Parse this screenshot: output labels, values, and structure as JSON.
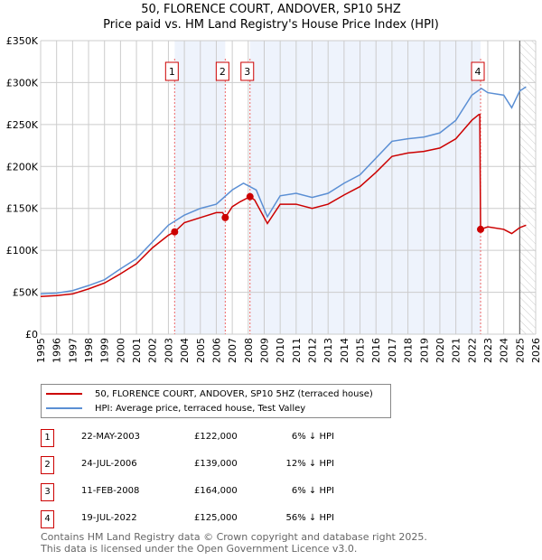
{
  "chart_data": {
    "type": "line",
    "title": "50, FLORENCE COURT, ANDOVER, SP10 5HZ",
    "subtitle": "Price paid vs. HM Land Registry's House Price Index (HPI)",
    "xlim": [
      1995,
      2026
    ],
    "ylim": [
      0,
      350000
    ],
    "x_ticks": [
      "1995",
      "1996",
      "1997",
      "1998",
      "1999",
      "2000",
      "2001",
      "2002",
      "2003",
      "2004",
      "2005",
      "2006",
      "2007",
      "2008",
      "2009",
      "2010",
      "2011",
      "2012",
      "2013",
      "2014",
      "2015",
      "2016",
      "2017",
      "2018",
      "2019",
      "2020",
      "2021",
      "2022",
      "2023",
      "2024",
      "2025",
      "2026"
    ],
    "y_ticks": [
      {
        "v": 0,
        "label": "£0"
      },
      {
        "v": 50000,
        "label": "£50K"
      },
      {
        "v": 100000,
        "label": "£100K"
      },
      {
        "v": 150000,
        "label": "£150K"
      },
      {
        "v": 200000,
        "label": "£200K"
      },
      {
        "v": 250000,
        "label": "£250K"
      },
      {
        "v": 300000,
        "label": "£300K"
      },
      {
        "v": 350000,
        "label": "£350K"
      }
    ],
    "grid": true,
    "series": [
      {
        "name": "50, FLORENCE COURT, ANDOVER, SP10 5HZ (terraced house)",
        "color": "#cc0000",
        "x": [
          1995,
          1996,
          1997,
          1998,
          1999,
          2000,
          2001,
          2002,
          2003,
          2003.39,
          2004,
          2005,
          2006,
          2006.4,
          2006.56,
          2007,
          2007.5,
          2008.11,
          2008.4,
          2009.2,
          2010,
          2011,
          2012,
          2013,
          2014,
          2015,
          2016,
          2017,
          2018,
          2019,
          2020,
          2021,
          2022,
          2022.45,
          2022.5,
          2022.55,
          2023,
          2024,
          2024.5,
          2025,
          2025.4
        ],
        "y": [
          45000,
          46000,
          48000,
          54000,
          61000,
          72000,
          84000,
          103000,
          118000,
          122000,
          133000,
          139000,
          145000,
          145000,
          139000,
          152000,
          158000,
          164000,
          160000,
          132000,
          155000,
          155000,
          150000,
          155000,
          166000,
          176000,
          193000,
          212000,
          216000,
          218000,
          222000,
          233000,
          255000,
          262000,
          262000,
          125000,
          128000,
          125000,
          120000,
          127000,
          130000
        ]
      },
      {
        "name": "HPI: Average price, terraced house, Test Valley",
        "color": "#5b8fd4",
        "x": [
          1995,
          1996,
          1997,
          1998,
          1999,
          2000,
          2001,
          2002,
          2003,
          2004,
          2005,
          2006,
          2007,
          2007.7,
          2008.5,
          2009.2,
          2010,
          2011,
          2012,
          2013,
          2014,
          2015,
          2016,
          2017,
          2018,
          2019,
          2020,
          2021,
          2022,
          2022.6,
          2023,
          2024,
          2024.5,
          2025,
          2025.4
        ],
        "y": [
          48000,
          49000,
          52000,
          58000,
          65000,
          78000,
          90000,
          110000,
          130000,
          142000,
          150000,
          155000,
          172000,
          180000,
          172000,
          140000,
          165000,
          168000,
          163000,
          168000,
          180000,
          190000,
          210000,
          230000,
          233000,
          235000,
          240000,
          255000,
          285000,
          293000,
          288000,
          285000,
          270000,
          290000,
          295000
        ]
      }
    ],
    "sales": [
      {
        "n": "1",
        "x": 2003.39,
        "y": 122000,
        "date": "22-MAY-2003",
        "price": "£122,000",
        "hpi": "6% ↓ HPI"
      },
      {
        "n": "2",
        "x": 2006.56,
        "y": 139000,
        "date": "24-JUL-2006",
        "price": "£139,000",
        "hpi": "12% ↓ HPI"
      },
      {
        "n": "3",
        "x": 2008.11,
        "y": 164000,
        "date": "11-FEB-2008",
        "price": "£164,000",
        "hpi": "6% ↓ HPI"
      },
      {
        "n": "4",
        "x": 2022.55,
        "y": 125000,
        "date": "19-JUL-2022",
        "price": "£125,000",
        "hpi": "56% ↓ HPI"
      }
    ],
    "shaded": [
      [
        2003.39,
        2006.56
      ],
      [
        2008.11,
        2022.55
      ]
    ],
    "hatched_from": 2025.0
  },
  "footer": {
    "line1": "Contains HM Land Registry data © Crown copyright and database right 2025.",
    "line2": "This data is licensed under the Open Government Licence v3.0."
  }
}
